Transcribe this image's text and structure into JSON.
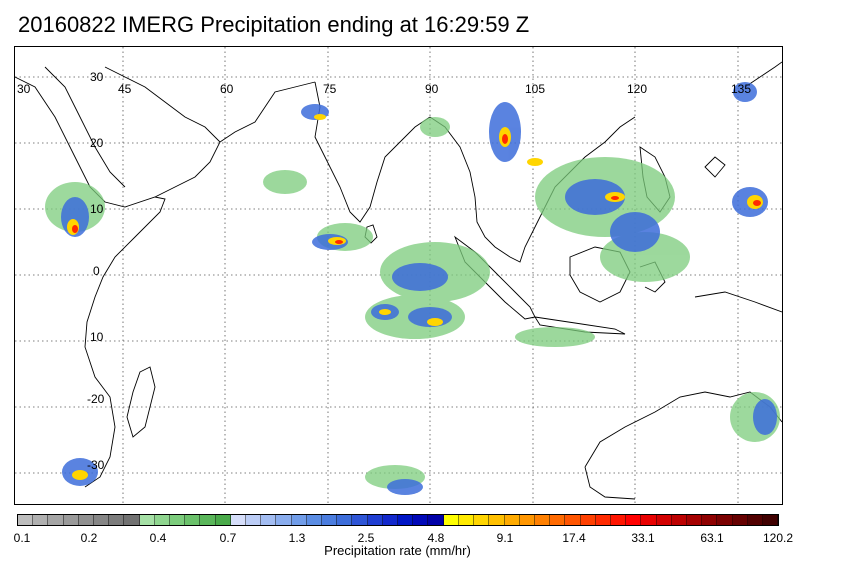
{
  "title": "20160822 IMERG Precipitation ending at 16:29:59 Z",
  "map": {
    "lon_labels": [
      "30",
      "45",
      "60",
      "75",
      "90",
      "105",
      "120",
      "135"
    ],
    "lat_labels": [
      "30",
      "20",
      "10",
      "0",
      "10",
      "-20",
      "-30"
    ],
    "grid": "dotted",
    "coastline_color": "#000000"
  },
  "colorbar": {
    "title": "Precipitation rate (mm/hr)",
    "tick_labels": [
      "0.1",
      "0.2",
      "0.4",
      "0.7",
      "1.3",
      "2.5",
      "4.8",
      "9.1",
      "17.4",
      "33.1",
      "63.1",
      "120.2"
    ],
    "colors": [
      "#bdbdbd",
      "#b0b0b0",
      "#a5a5a5",
      "#9a9a9a",
      "#909090",
      "#868686",
      "#7c7c7c",
      "#727272",
      "#a6e0a6",
      "#8fd58f",
      "#7ccc7c",
      "#6bc16b",
      "#5ab65a",
      "#4aaa4a",
      "#d6defa",
      "#bccdf6",
      "#a3bdf2",
      "#8aadee",
      "#719de9",
      "#5b8de4",
      "#4b7ddf",
      "#3d6dda",
      "#2e55d6",
      "#1f3ed2",
      "#1228cc",
      "#0016c6",
      "#0008b8",
      "#0000a8",
      "#ffff00",
      "#ffea00",
      "#ffd500",
      "#ffc000",
      "#ffab00",
      "#ff9600",
      "#ff8000",
      "#ff6a00",
      "#ff5500",
      "#ff4000",
      "#ff2a00",
      "#ff1500",
      "#ff0000",
      "#e80000",
      "#d20000",
      "#bc0000",
      "#a50000",
      "#8e0000",
      "#7a0000",
      "#660000",
      "#520000",
      "#400000"
    ]
  }
}
